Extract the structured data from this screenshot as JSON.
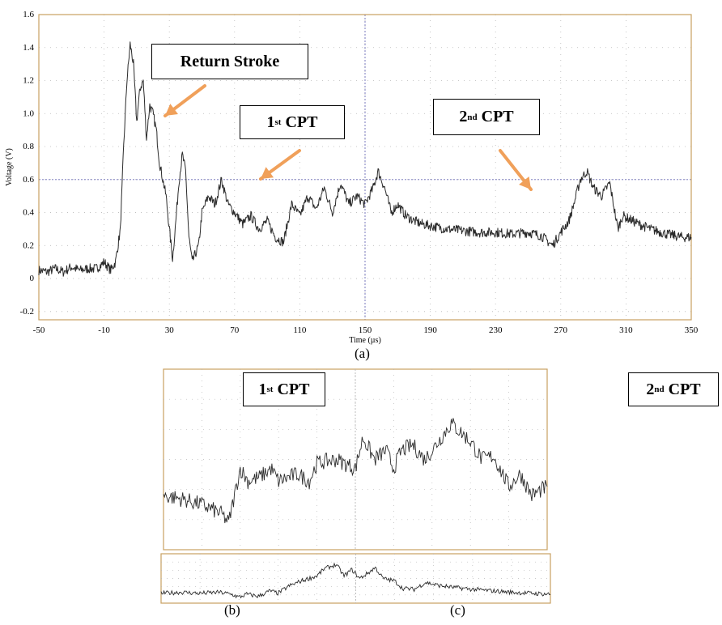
{
  "colors": {
    "frame": "#c8a062",
    "signal": "#2a2a2a",
    "guide": "#6a6ab8",
    "arrow": "#f0a05a",
    "dots": "#b8b8b8"
  },
  "labels": {
    "return_stroke": "Return Stroke",
    "first_cpt": "1",
    "first_cpt_sup": "st",
    "first_cpt_rest": " CPT",
    "second_cpt": "2",
    "second_cpt_sup": "nd",
    "second_cpt_rest": " CPT"
  },
  "panel_letters": {
    "a": "(a)",
    "b": "(b)",
    "c": "(c)"
  },
  "chart_data": [
    {
      "panel": "(a)",
      "type": "line",
      "title": "",
      "xlabel": "Time (µs)",
      "ylabel": "Voltage (V)",
      "xlim": [
        -50,
        350
      ],
      "ylim": [
        -0.25,
        1.6
      ],
      "x_ticks": [
        -50,
        -10,
        30,
        70,
        110,
        150,
        190,
        230,
        270,
        310,
        350
      ],
      "y_ticks": [
        -0.2,
        0,
        0.2,
        0.4,
        0.6,
        0.8,
        1.0,
        1.2,
        1.4,
        1.6
      ],
      "y_tick_labels": [
        "-0.2",
        "0",
        "0.2",
        "0.4",
        "0.6",
        "0.8",
        "1.0",
        "1.2",
        "1.4",
        "1.6"
      ],
      "reference_line_y": 0.6,
      "reference_line_x": 150,
      "grid": "dotted",
      "series": [
        {
          "x": [
            -50,
            -45,
            -40,
            -35,
            -30,
            -25,
            -20,
            -15,
            -12,
            -10,
            -6,
            -3,
            0,
            2,
            4,
            6,
            8,
            10,
            12,
            14,
            16,
            18,
            20,
            22,
            24,
            26,
            28,
            30,
            32,
            34,
            36,
            38,
            40,
            42,
            44,
            46,
            48,
            50,
            54,
            58,
            62,
            66,
            70,
            75,
            80,
            85,
            90,
            95,
            100,
            105,
            110,
            115,
            120,
            125,
            130,
            135,
            140,
            145,
            150,
            155,
            158,
            162,
            166,
            170,
            175,
            180,
            185,
            190,
            200,
            210,
            220,
            230,
            240,
            250,
            258,
            265,
            270,
            275,
            278,
            282,
            286,
            290,
            295,
            300,
            305,
            308,
            312,
            318,
            325,
            335,
            345,
            350
          ],
          "y": [
            0.05,
            0.04,
            0.06,
            0.04,
            0.07,
            0.05,
            0.06,
            0.06,
            0.08,
            0.1,
            0.05,
            0.1,
            0.3,
            0.8,
            1.2,
            1.42,
            1.3,
            0.95,
            1.15,
            1.2,
            0.85,
            1.05,
            1.0,
            0.9,
            0.7,
            0.6,
            0.5,
            0.3,
            0.12,
            0.35,
            0.6,
            0.75,
            0.65,
            0.25,
            0.1,
            0.15,
            0.2,
            0.4,
            0.5,
            0.45,
            0.6,
            0.45,
            0.4,
            0.33,
            0.38,
            0.3,
            0.35,
            0.25,
            0.22,
            0.45,
            0.38,
            0.5,
            0.42,
            0.55,
            0.4,
            0.58,
            0.45,
            0.5,
            0.45,
            0.55,
            0.65,
            0.55,
            0.4,
            0.45,
            0.38,
            0.35,
            0.33,
            0.32,
            0.3,
            0.29,
            0.28,
            0.28,
            0.27,
            0.28,
            0.26,
            0.2,
            0.28,
            0.35,
            0.45,
            0.6,
            0.65,
            0.55,
            0.5,
            0.58,
            0.3,
            0.38,
            0.36,
            0.33,
            0.3,
            0.27,
            0.25,
            0.25
          ]
        }
      ]
    },
    {
      "panel": "(b)",
      "type": "line",
      "title": "",
      "xlabel": "",
      "ylabel": "",
      "xlim": [
        0,
        100
      ],
      "ylim": [
        0,
        1
      ],
      "grid": "dotted",
      "series": [
        {
          "x": [
            0,
            5,
            10,
            15,
            17,
            19,
            20,
            22,
            25,
            28,
            30,
            35,
            38,
            40,
            45,
            50,
            52,
            55,
            58,
            60,
            62,
            65,
            68,
            70,
            75,
            80,
            83,
            86,
            90,
            93,
            96,
            100
          ],
          "y": [
            0.3,
            0.28,
            0.25,
            0.2,
            0.15,
            0.35,
            0.45,
            0.38,
            0.4,
            0.45,
            0.38,
            0.42,
            0.38,
            0.48,
            0.5,
            0.45,
            0.62,
            0.5,
            0.55,
            0.45,
            0.55,
            0.58,
            0.5,
            0.55,
            0.7,
            0.6,
            0.5,
            0.52,
            0.35,
            0.42,
            0.3,
            0.35
          ]
        }
      ]
    },
    {
      "panel": "(c)",
      "type": "line",
      "title": "",
      "xlabel": "",
      "ylabel": "",
      "xlim": [
        0,
        100
      ],
      "ylim": [
        0,
        1
      ],
      "grid": "dotted",
      "series": [
        {
          "x": [
            0,
            5,
            10,
            15,
            18,
            20,
            22,
            25,
            28,
            30,
            33,
            36,
            40,
            42,
            45,
            47,
            49,
            51,
            53,
            55,
            57,
            60,
            62,
            65,
            68,
            70,
            72,
            75,
            80,
            85,
            90,
            95,
            100
          ],
          "y": [
            0.2,
            0.22,
            0.2,
            0.22,
            0.18,
            0.12,
            0.18,
            0.14,
            0.25,
            0.2,
            0.35,
            0.45,
            0.55,
            0.7,
            0.78,
            0.55,
            0.68,
            0.5,
            0.6,
            0.72,
            0.5,
            0.45,
            0.3,
            0.28,
            0.42,
            0.38,
            0.35,
            0.32,
            0.28,
            0.25,
            0.22,
            0.2,
            0.18
          ]
        }
      ]
    }
  ]
}
